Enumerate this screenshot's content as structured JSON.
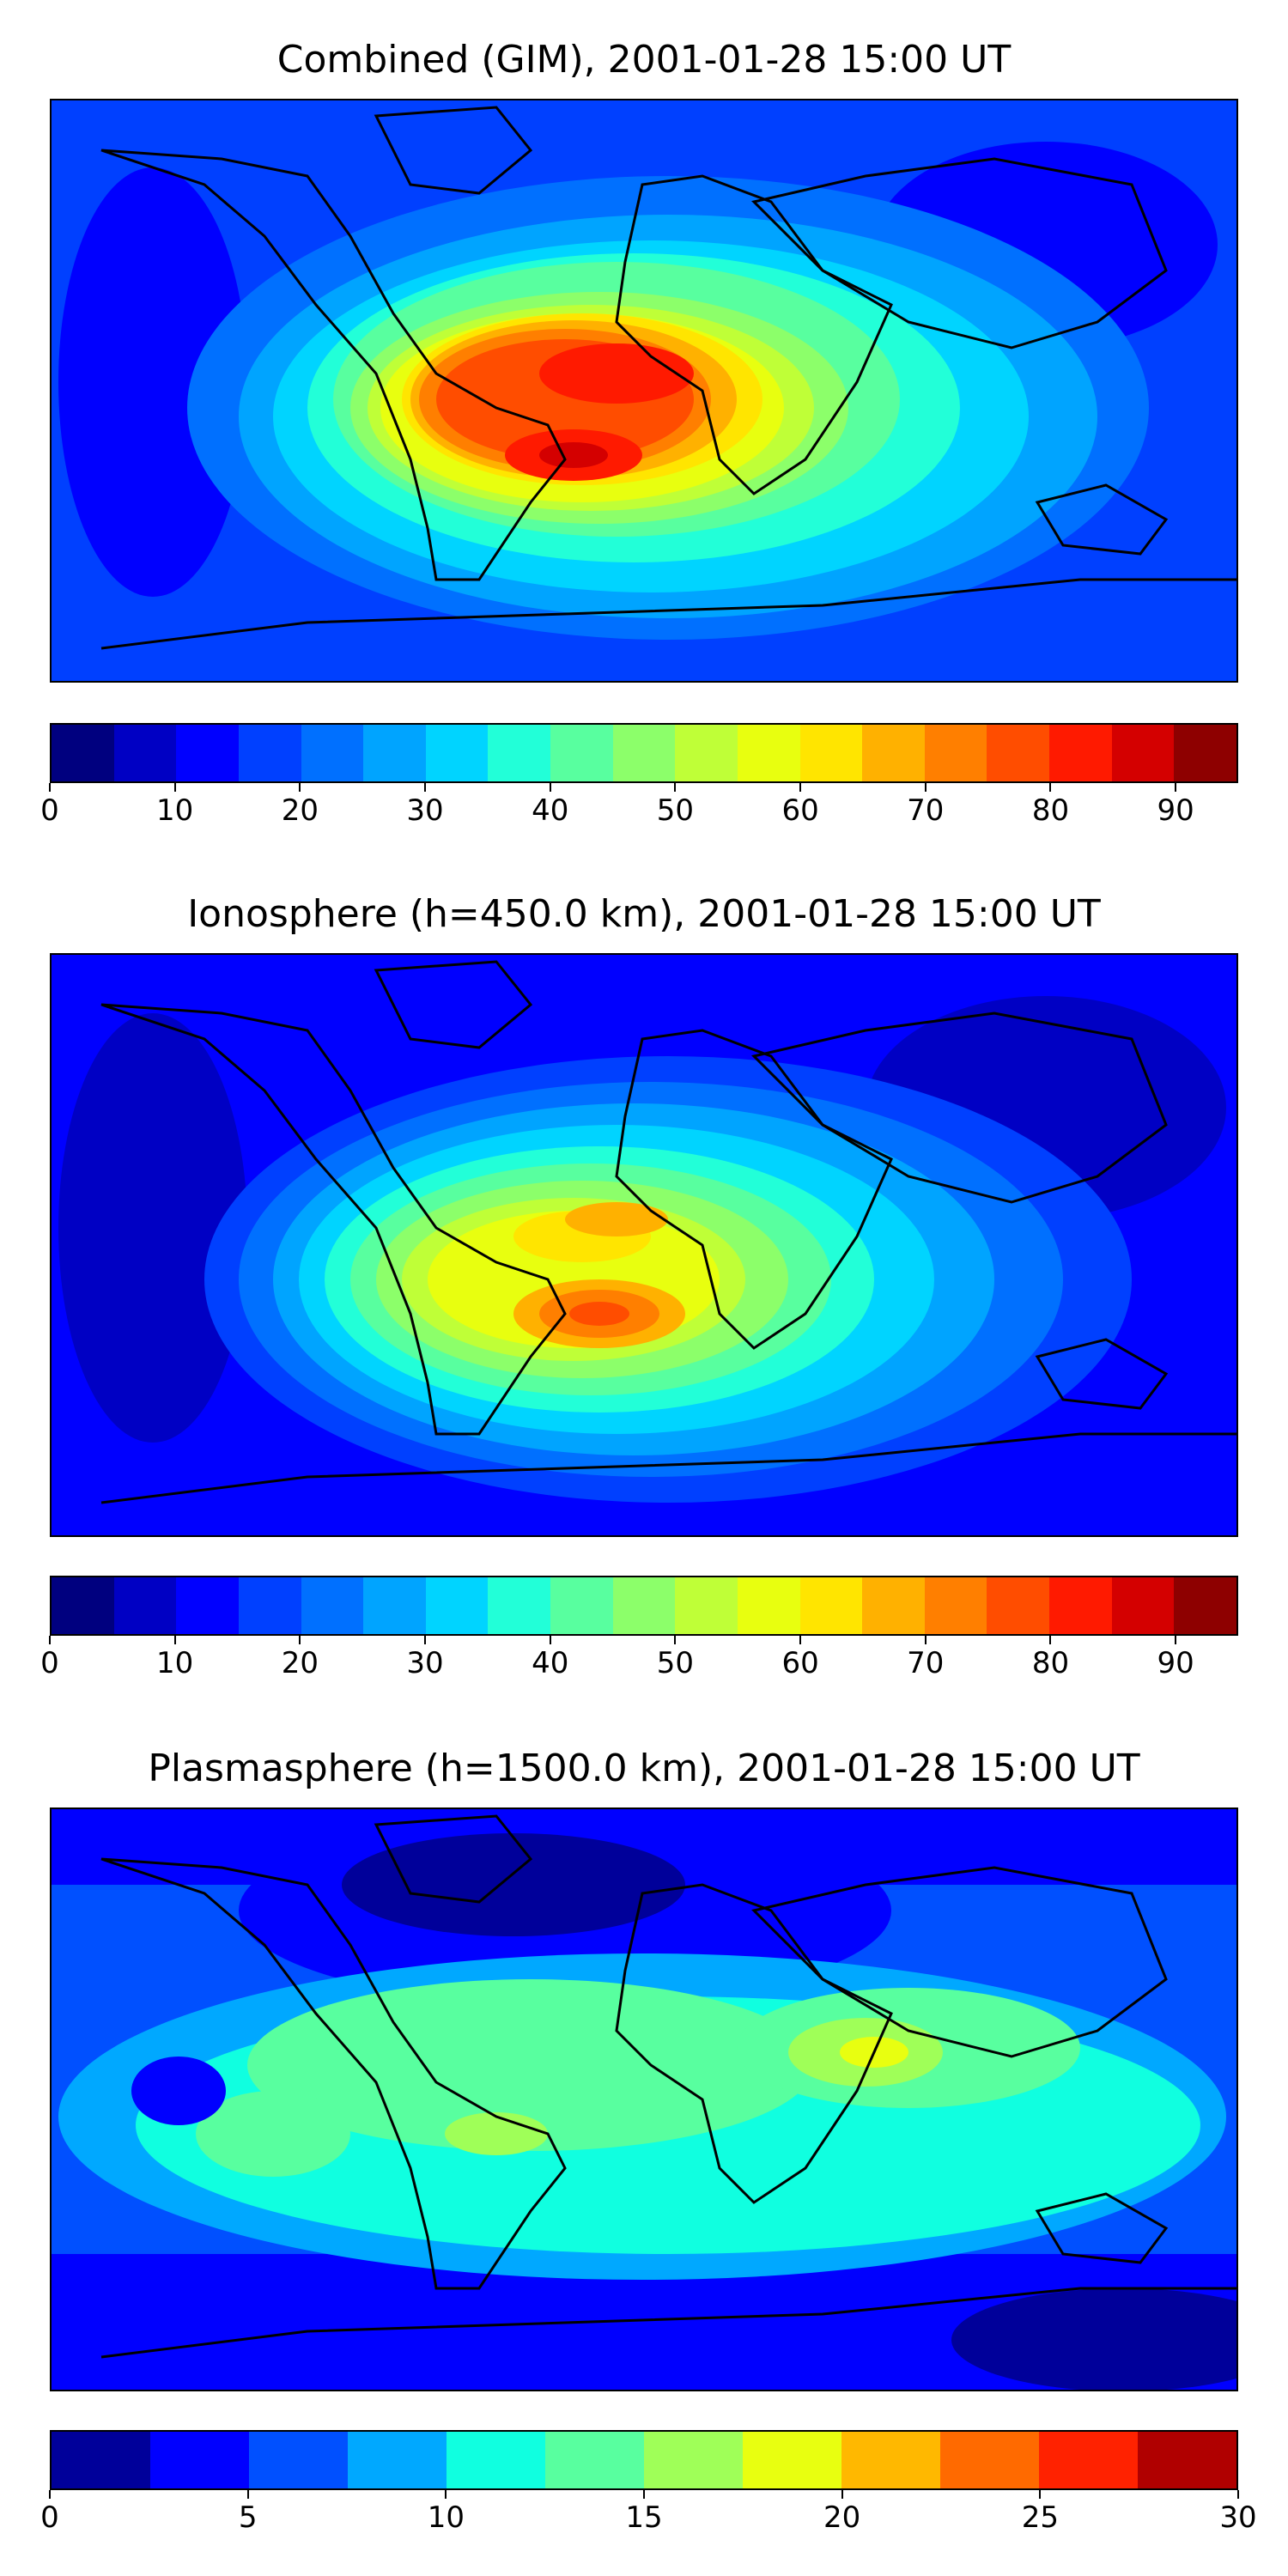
{
  "panels": [
    {
      "title": "Combined (GIM), 2001-01-28 15:00 UT",
      "colorbar_ticks": [
        "0",
        "10",
        "20",
        "30",
        "40",
        "50",
        "60",
        "70",
        "80",
        "90"
      ],
      "colorbar_colors": [
        "#00007f",
        "#0000c4",
        "#0000ff",
        "#0040ff",
        "#0070ff",
        "#00a4ff",
        "#00d4ff",
        "#22ffd8",
        "#58ff9f",
        "#8cff6a",
        "#bfff37",
        "#e8ff0f",
        "#ffe500",
        "#ffb100",
        "#ff7f00",
        "#ff4d00",
        "#ff1a00",
        "#d40000",
        "#8e0000"
      ],
      "colorbar_range": [
        0,
        95
      ]
    },
    {
      "title": "Ionosphere  (h=450.0 km), 2001-01-28 15:00 UT",
      "colorbar_ticks": [
        "0",
        "10",
        "20",
        "30",
        "40",
        "50",
        "60",
        "70",
        "80",
        "90"
      ],
      "colorbar_colors": [
        "#00007f",
        "#0000c4",
        "#0000ff",
        "#0040ff",
        "#0070ff",
        "#00a4ff",
        "#00d4ff",
        "#22ffd8",
        "#58ff9f",
        "#8cff6a",
        "#bfff37",
        "#e8ff0f",
        "#ffe500",
        "#ffb100",
        "#ff7f00",
        "#ff4d00",
        "#ff1a00",
        "#d40000",
        "#8e0000"
      ],
      "colorbar_range": [
        0,
        95
      ]
    },
    {
      "title": "Plasmasphere (h=1500.0 km), 2001-01-28 15:00 UT",
      "colorbar_ticks": [
        "0",
        "5",
        "10",
        "15",
        "20",
        "25",
        "30"
      ],
      "colorbar_colors": [
        "#00009a",
        "#0000ff",
        "#0050ff",
        "#00a8ff",
        "#10ffe0",
        "#58ff9f",
        "#9fff58",
        "#e8ff10",
        "#ffb800",
        "#ff6a00",
        "#ff2200",
        "#b00000"
      ],
      "colorbar_range": [
        0,
        30
      ]
    }
  ]
}
